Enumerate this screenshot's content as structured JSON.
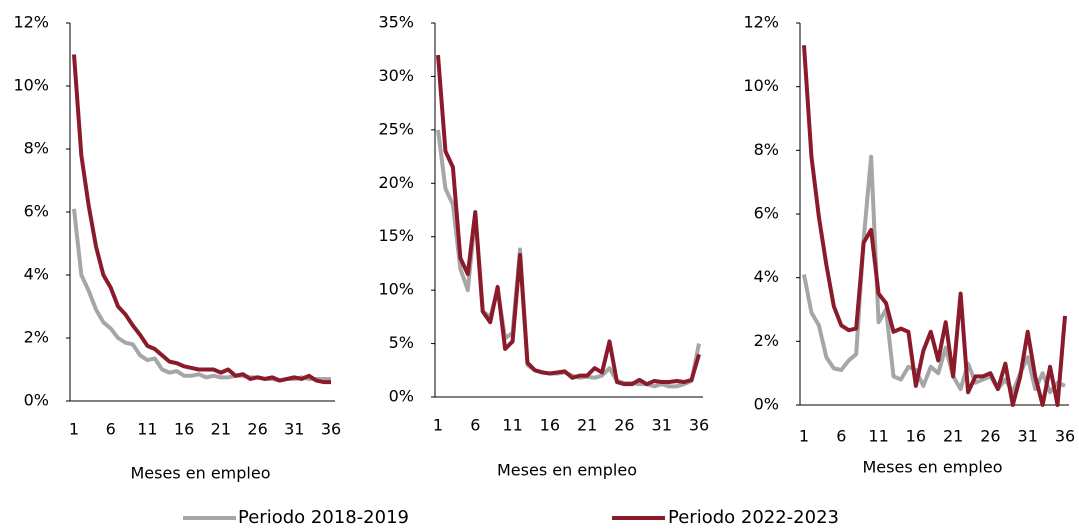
{
  "chart_data": [
    {
      "type": "line",
      "x_label": "Meses en empleo",
      "x": [
        1,
        2,
        3,
        4,
        5,
        6,
        7,
        8,
        9,
        10,
        11,
        12,
        13,
        14,
        15,
        16,
        17,
        18,
        19,
        20,
        21,
        22,
        23,
        24,
        25,
        26,
        27,
        28,
        29,
        30,
        31,
        32,
        33,
        34,
        35,
        36
      ],
      "xlim": [
        1,
        36
      ],
      "xticks": [
        1,
        6,
        11,
        16,
        21,
        26,
        31,
        36
      ],
      "ylim": [
        0,
        12
      ],
      "yticks": [
        {
          "value": 0,
          "label": "0%"
        },
        {
          "value": 2,
          "label": "2%"
        },
        {
          "value": 4,
          "label": "4%"
        },
        {
          "value": 6,
          "label": "6%"
        },
        {
          "value": 8,
          "label": "8%"
        },
        {
          "value": 10,
          "label": "10%"
        },
        {
          "value": 12,
          "label": "12%"
        }
      ],
      "series": [
        {
          "name": "Periodo 2018-2019",
          "color": "#a6a6a6",
          "values": [
            6.1,
            4.0,
            3.5,
            2.9,
            2.5,
            2.3,
            2.0,
            1.85,
            1.8,
            1.45,
            1.3,
            1.35,
            1.0,
            0.9,
            0.95,
            0.8,
            0.8,
            0.85,
            0.75,
            0.8,
            0.75,
            0.75,
            0.8,
            0.8,
            0.75,
            0.75,
            0.7,
            0.7,
            0.65,
            0.7,
            0.7,
            0.75,
            0.7,
            0.7,
            0.7,
            0.7
          ]
        },
        {
          "name": "Periodo 2022-2023",
          "color": "#8b1a2b",
          "values": [
            11.0,
            7.8,
            6.2,
            4.9,
            4.0,
            3.6,
            3.0,
            2.75,
            2.4,
            2.1,
            1.75,
            1.65,
            1.45,
            1.25,
            1.2,
            1.1,
            1.05,
            1.0,
            1.0,
            1.0,
            0.9,
            1.0,
            0.8,
            0.85,
            0.7,
            0.75,
            0.7,
            0.75,
            0.65,
            0.7,
            0.75,
            0.7,
            0.8,
            0.65,
            0.6,
            0.6
          ]
        }
      ]
    },
    {
      "type": "line",
      "x_label": "Meses en empleo",
      "x": [
        1,
        2,
        3,
        4,
        5,
        6,
        7,
        8,
        9,
        10,
        11,
        12,
        13,
        14,
        15,
        16,
        17,
        18,
        19,
        20,
        21,
        22,
        23,
        24,
        25,
        26,
        27,
        28,
        29,
        30,
        31,
        32,
        33,
        34,
        35,
        36
      ],
      "xlim": [
        1,
        36
      ],
      "xticks": [
        1,
        6,
        11,
        16,
        21,
        26,
        31,
        36
      ],
      "ylim": [
        0,
        35
      ],
      "yticks": [
        {
          "value": 0,
          "label": "0%"
        },
        {
          "value": 5,
          "label": "5%"
        },
        {
          "value": 10,
          "label": "10%"
        },
        {
          "value": 15,
          "label": "15%"
        },
        {
          "value": 20,
          "label": "20%"
        },
        {
          "value": 25,
          "label": "25%"
        },
        {
          "value": 30,
          "label": "30%"
        },
        {
          "value": 35,
          "label": "35%"
        }
      ],
      "series": [
        {
          "color": "#a6a6a6",
          "values": [
            25,
            19.5,
            18,
            12,
            10,
            17,
            8,
            7.5,
            10,
            5.5,
            6,
            13.8,
            3,
            2.5,
            2.3,
            2.2,
            2.2,
            2.3,
            2.0,
            1.8,
            1.9,
            1.8,
            2.0,
            2.7,
            1.5,
            1.3,
            1.3,
            1.2,
            1.2,
            1.0,
            1.2,
            1.0,
            1.0,
            1.2,
            1.5,
            5.0
          ]
        },
        {
          "color": "#8b1a2b",
          "values": [
            32,
            23,
            21.5,
            13,
            11.5,
            17.3,
            8,
            7,
            10.3,
            4.5,
            5.2,
            13.3,
            3.2,
            2.5,
            2.3,
            2.2,
            2.3,
            2.4,
            1.8,
            2.0,
            2.0,
            2.7,
            2.3,
            5.2,
            1.4,
            1.2,
            1.2,
            1.6,
            1.2,
            1.5,
            1.4,
            1.4,
            1.5,
            1.4,
            1.6,
            4.0
          ]
        }
      ]
    },
    {
      "type": "line",
      "x_label": "Meses en empleo",
      "x": [
        1,
        2,
        3,
        4,
        5,
        6,
        7,
        8,
        9,
        10,
        11,
        12,
        13,
        14,
        15,
        16,
        17,
        18,
        19,
        20,
        21,
        22,
        23,
        24,
        25,
        26,
        27,
        28,
        29,
        30,
        31,
        32,
        33,
        34,
        35,
        36
      ],
      "xlim": [
        1,
        36
      ],
      "xticks": [
        1,
        6,
        11,
        16,
        21,
        26,
        31,
        36
      ],
      "ylim": [
        0,
        12
      ],
      "yticks": [
        {
          "value": 0,
          "label": "0%"
        },
        {
          "value": 2,
          "label": "2%"
        },
        {
          "value": 4,
          "label": "4%"
        },
        {
          "value": 6,
          "label": "6%"
        },
        {
          "value": 8,
          "label": "8%"
        },
        {
          "value": 10,
          "label": "10%"
        },
        {
          "value": 12,
          "label": "12%"
        }
      ],
      "series": [
        {
          "color": "#a6a6a6",
          "values": [
            4.1,
            2.9,
            2.5,
            1.5,
            1.15,
            1.1,
            1.4,
            1.6,
            5.2,
            7.8,
            2.6,
            3.0,
            0.9,
            0.8,
            1.2,
            1.1,
            0.6,
            1.2,
            1.0,
            1.8,
            0.9,
            0.5,
            1.3,
            0.7,
            0.8,
            0.9,
            0.5,
            0.8,
            0.4,
            1.0,
            1.5,
            0.5,
            1.0,
            0.4,
            0.7,
            0.6
          ]
        },
        {
          "color": "#8b1a2b",
          "values": [
            11.3,
            7.8,
            5.9,
            4.4,
            3.1,
            2.5,
            2.35,
            2.4,
            5.1,
            5.5,
            3.5,
            3.2,
            2.3,
            2.4,
            2.3,
            0.6,
            1.7,
            2.3,
            1.4,
            2.6,
            0.9,
            3.5,
            0.4,
            0.9,
            0.9,
            1.0,
            0.5,
            1.3,
            0.0,
            0.9,
            2.3,
            0.9,
            0.0,
            1.2,
            0.0,
            2.8
          ]
        }
      ]
    }
  ]
}
